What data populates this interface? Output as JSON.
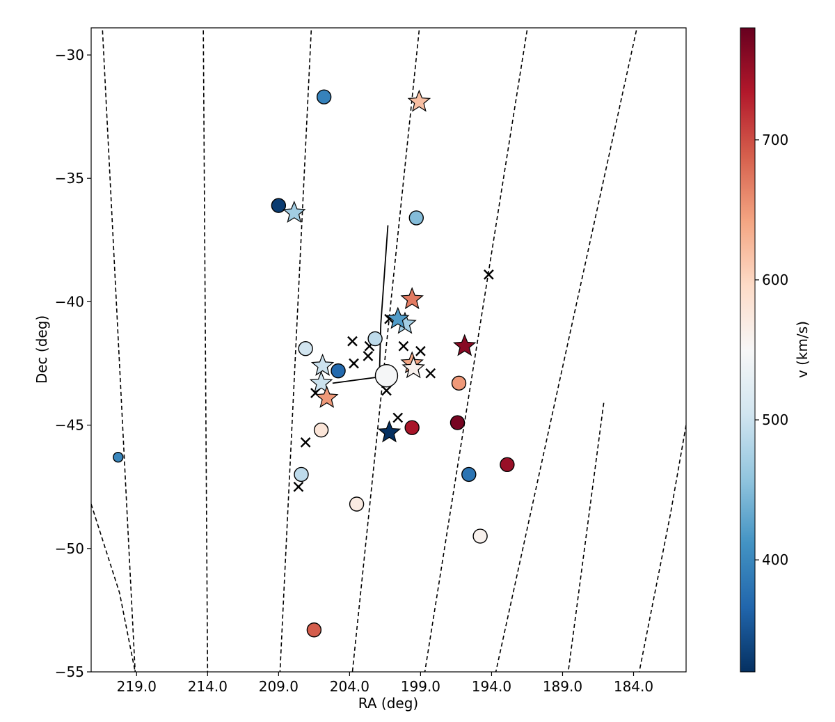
{
  "chart_data": {
    "type": "scatter",
    "title": "",
    "xlabel": "RA (deg)",
    "ylabel": "Dec (deg)",
    "colorbar_label": "v (km/s)",
    "xlim": [
      222.2,
      180.3
    ],
    "ylim": [
      -55,
      -28.9
    ],
    "x_tick_values": [
      219,
      214,
      209,
      204,
      199,
      194,
      189,
      184
    ],
    "x_tick_labels": [
      "219.0",
      "214.0",
      "209.0",
      "204.0",
      "199.0",
      "194.0",
      "189.0",
      "184.0"
    ],
    "y_tick_values": [
      -30,
      -35,
      -40,
      -45,
      -50,
      -55
    ],
    "y_tick_labels": [
      "−30",
      "−35",
      "−40",
      "−45",
      "−50",
      "−55"
    ],
    "colorbar_range": [
      320,
      780
    ],
    "colorbar_tick_values": [
      400,
      500,
      600,
      700
    ],
    "colorbar_tick_labels": [
      "400",
      "500",
      "600",
      "700"
    ],
    "colormap": "RdBu_r",
    "grid": "dashed curved RA meridians",
    "meridian_lines": [
      {
        "x": [
          221.4,
          219.1
        ],
        "y": [
          -29.0,
          -55.0
        ]
      },
      {
        "x": [
          214.3,
          214.0
        ],
        "y": [
          -29.0,
          -55.0
        ]
      },
      {
        "x": [
          206.7,
          208.9
        ],
        "y": [
          -29.0,
          -55.0
        ]
      },
      {
        "x": [
          199.1,
          203.8
        ],
        "y": [
          -29.0,
          -55.0
        ]
      },
      {
        "x": [
          191.5,
          198.7
        ],
        "y": [
          -29.0,
          -55.0
        ]
      },
      {
        "x": [
          183.8,
          193.7
        ],
        "y": [
          -29.0,
          -55.0
        ]
      },
      {
        "x": [
          186.1,
          188.6
        ],
        "y": [
          -44.1,
          -55.0
        ]
      }
    ],
    "edge_curves": [
      {
        "x": [
          222.2,
          220.2,
          219.1
        ],
        "y": [
          -48.2,
          -51.8,
          -55.0
        ]
      },
      {
        "x": [
          180.3,
          181.4,
          183.6
        ],
        "y": [
          -45.0,
          -48.6,
          -55.0
        ]
      }
    ],
    "vectors": [
      {
        "x": [
          201.3,
          201.8,
          201.9
        ],
        "y": [
          -36.9,
          -40.9,
          -43.0
        ]
      },
      {
        "x": [
          201.3,
          205.2
        ],
        "y": [
          -43.0,
          -43.3
        ]
      }
    ],
    "center": {
      "ra": 201.4,
      "dec": -43.0,
      "v": 547
    },
    "circles": [
      {
        "ra": 205.8,
        "dec": -31.7,
        "v": 395
      },
      {
        "ra": 209.0,
        "dec": -36.1,
        "v": 330
      },
      {
        "ra": 199.3,
        "dec": -36.6,
        "v": 450
      },
      {
        "ra": 207.1,
        "dec": -41.9,
        "v": 505
      },
      {
        "ra": 202.2,
        "dec": -41.5,
        "v": 490
      },
      {
        "ra": 204.8,
        "dec": -42.8,
        "v": 370
      },
      {
        "ra": 196.3,
        "dec": -43.3,
        "v": 650
      },
      {
        "ra": 196.4,
        "dec": -44.9,
        "v": 770
      },
      {
        "ra": 199.6,
        "dec": -45.1,
        "v": 740
      },
      {
        "ra": 206.0,
        "dec": -45.2,
        "v": 580
      },
      {
        "ra": 207.4,
        "dec": -47.0,
        "v": 490
      },
      {
        "ra": 195.6,
        "dec": -47.0,
        "v": 380
      },
      {
        "ra": 192.9,
        "dec": -46.6,
        "v": 750
      },
      {
        "ra": 203.5,
        "dec": -48.2,
        "v": 570
      },
      {
        "ra": 194.8,
        "dec": -49.5,
        "v": 560
      },
      {
        "ra": 206.5,
        "dec": -53.3,
        "v": 690
      },
      {
        "ra": 220.3,
        "dec": -46.3,
        "v": 400,
        "small": true
      }
    ],
    "stars": [
      {
        "ra": 199.1,
        "dec": -31.9,
        "v": 620
      },
      {
        "ra": 207.9,
        "dec": -36.4,
        "v": 470
      },
      {
        "ra": 199.6,
        "dec": -39.9,
        "v": 670
      },
      {
        "ra": 200.1,
        "dec": -40.9,
        "v": 470
      },
      {
        "ra": 200.6,
        "dec": -40.7,
        "v": 420
      },
      {
        "ra": 195.9,
        "dec": -41.8,
        "v": 760
      },
      {
        "ra": 205.9,
        "dec": -42.6,
        "v": 500
      },
      {
        "ra": 199.6,
        "dec": -42.5,
        "v": 640
      },
      {
        "ra": 199.5,
        "dec": -42.7,
        "v": 560
      },
      {
        "ra": 206.0,
        "dec": -43.3,
        "v": 500
      },
      {
        "ra": 205.6,
        "dec": -43.9,
        "v": 650
      },
      {
        "ra": 201.2,
        "dec": -45.3,
        "v": 320
      }
    ],
    "crosses": [
      {
        "ra": 194.2,
        "dec": -38.9
      },
      {
        "ra": 203.8,
        "dec": -41.6
      },
      {
        "ra": 202.6,
        "dec": -41.8
      },
      {
        "ra": 202.7,
        "dec": -42.2
      },
      {
        "ra": 200.2,
        "dec": -41.8
      },
      {
        "ra": 199.0,
        "dec": -42.0
      },
      {
        "ra": 203.7,
        "dec": -42.5
      },
      {
        "ra": 198.3,
        "dec": -42.9
      },
      {
        "ra": 201.4,
        "dec": -43.6
      },
      {
        "ra": 206.4,
        "dec": -43.7
      },
      {
        "ra": 200.6,
        "dec": -44.7
      },
      {
        "ra": 207.1,
        "dec": -45.7
      },
      {
        "ra": 207.6,
        "dec": -47.5
      },
      {
        "ra": 201.2,
        "dec": -40.7
      }
    ]
  }
}
